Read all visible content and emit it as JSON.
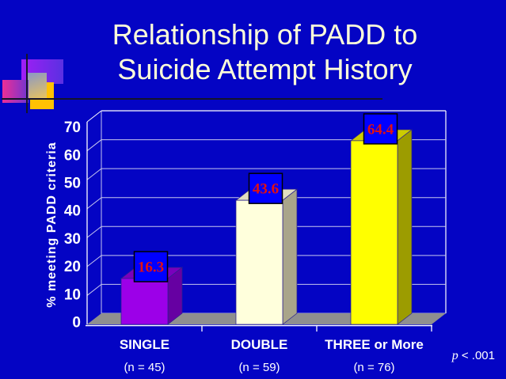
{
  "slide": {
    "background_color": "#0404C4",
    "title_line1": "Relationship of PADD to",
    "title_line2": "Suicide Attempt History",
    "title_color": "#FFFFD9",
    "p_italic": "p",
    "p_rest": " < .001"
  },
  "decoration": {
    "purple_rect": {
      "from": "#A01EF5",
      "to": "#5A30E2"
    },
    "pink_rect": {
      "from": "#EE2E96",
      "to": "#6F35D2"
    },
    "gradient_strip": {
      "from": "#8A97C6",
      "to": "#E9C45E"
    },
    "yellow_rect": "#FFC103",
    "line_color": "#14142B"
  },
  "chart_data": {
    "type": "bar",
    "title": "Relationship of PADD to Suicide Attempt History",
    "categories": [
      "SINGLE",
      "DOUBLE",
      "THREE or More"
    ],
    "subcategories": [
      "(n = 45)",
      "(n = 59)",
      "(n = 76)"
    ],
    "sample_sizes": [
      45,
      59,
      76
    ],
    "values": [
      16.3,
      43.6,
      64.4
    ],
    "value_labels": [
      "16.3",
      "43.6",
      "64.4"
    ],
    "xlabel": "",
    "ylabel": "% meeting PADD criteria",
    "ylim": [
      0,
      70
    ],
    "yticks": [
      0,
      10,
      20,
      30,
      40,
      50,
      60,
      70
    ],
    "grid": true,
    "legend": false,
    "annotation": "p < .001",
    "bar_colors": [
      {
        "front": "#9C00E8",
        "top": "#7A00BC",
        "side": "#6600A2"
      },
      {
        "front": "#FFFFDC",
        "top": "#E2DEC0",
        "side": "#A9A58A"
      },
      {
        "front": "#FFFF00",
        "top": "#CCCC00",
        "side": "#9C9C00"
      }
    ],
    "value_label_style": {
      "bg": "#0000FF",
      "border": "#000000",
      "text_color": "#E31010"
    },
    "floor_color": "#8F8F8F",
    "gridline_color": "#C6C6EE",
    "axis_color": "#FFFFFF",
    "axis_text_color": "#FFFFFF"
  }
}
